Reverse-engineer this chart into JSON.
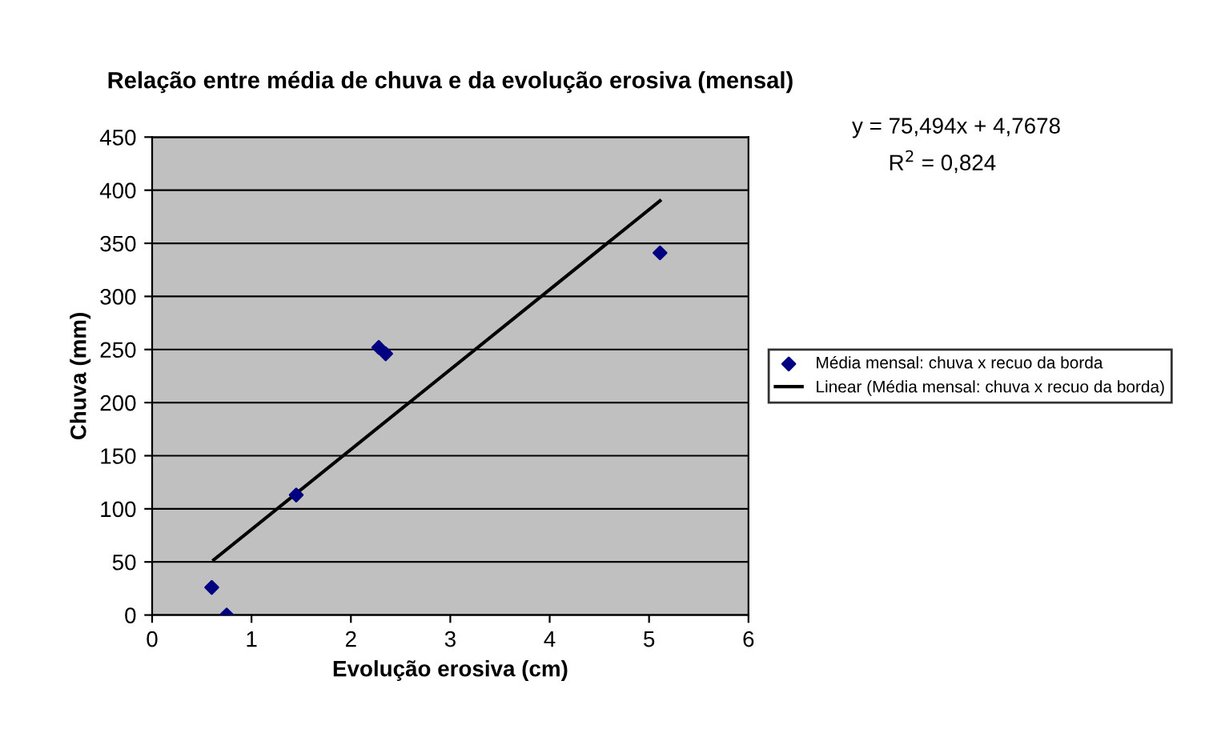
{
  "chart_data": {
    "type": "scatter",
    "title": "Relação entre média de chuva e da evolução erosiva (mensal)",
    "xlabel": "Evolução erosiva (cm)",
    "ylabel": "Chuva (mm)",
    "series": [
      {
        "name": "Média mensal: chuva x recuo da borda",
        "color": "#000080",
        "marker": "diamond",
        "x": [
          0.6,
          0.75,
          1.45,
          2.28,
          2.35,
          5.11
        ],
        "values": [
          26,
          0,
          113,
          252,
          246,
          341
        ]
      },
      {
        "name": "Linear (Média mensal: chuva x recuo da borda)",
        "type": "line",
        "color": "#000000",
        "marker": "none",
        "line_style": "solid",
        "x": [
          0.62,
          5.11
        ],
        "values": [
          52,
          390
        ]
      }
    ],
    "annotations": [
      "y = 75,494x + 4,7678",
      "R$^{2}$ = 0,824"
    ],
    "xlim": [
      0,
      6
    ],
    "xticks": [
      0,
      1,
      2,
      3,
      4,
      5,
      6
    ],
    "ylim": [
      0,
      450
    ],
    "yticks": [
      0,
      50,
      100,
      150,
      200,
      250,
      300,
      350,
      400,
      450
    ],
    "grid": "y",
    "legend": "right"
  }
}
